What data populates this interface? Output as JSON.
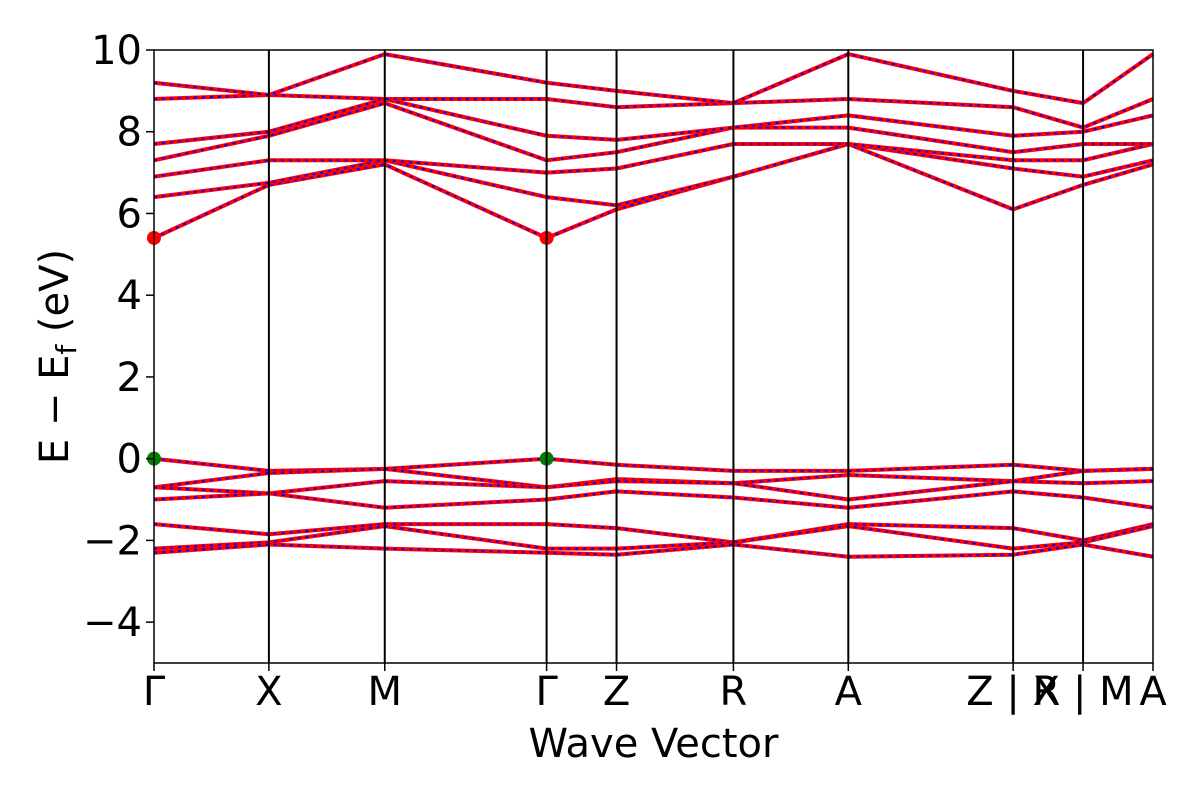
{
  "chart_data": {
    "type": "line",
    "title": "",
    "xlabel": "Wave Vector",
    "ylabel": "E − E",
    "ylabel_sub": "f",
    "ylabel_unit": "(eV)",
    "ylim": [
      -5,
      10
    ],
    "yticks": [
      -4,
      -2,
      0,
      2,
      4,
      6,
      8,
      10
    ],
    "ytick_labels": [
      "−4",
      "−2",
      "0",
      "2",
      "4",
      "6",
      "8",
      "10"
    ],
    "kpath_positions": [
      0,
      0.115,
      0.231,
      0.393,
      0.463,
      0.58,
      0.695,
      0.86,
      0.93,
      1.0
    ],
    "kpath_labels": [
      "Γ",
      "X",
      "M",
      "Γ",
      "Z",
      "R",
      "A",
      "Z | X",
      "R | M",
      "A"
    ],
    "grid": false,
    "legend": "none",
    "colors": {
      "band_primary": "#ff0000",
      "band_secondary": "#0000ff",
      "vbm_marker": "#008000",
      "cbm_marker": "#ff0000",
      "vline": "#000000"
    },
    "band_gap_points": {
      "vbm": [
        {
          "k": 0,
          "E": 0.0
        },
        {
          "k": 0.393,
          "E": 0.0
        }
      ],
      "cbm": [
        {
          "k": 0,
          "E": 5.4
        },
        {
          "k": 0.393,
          "E": 5.4
        }
      ]
    },
    "series": [
      {
        "k": [
          0,
          0.115,
          0.231,
          0.393,
          0.463,
          0.58,
          0.695,
          0.86,
          0.93,
          1.0
        ],
        "E": [
          5.4,
          6.7,
          7.2,
          5.4,
          6.1,
          6.9,
          7.7,
          6.1,
          6.7,
          7.2
        ]
      },
      {
        "k": [
          0,
          0.115,
          0.231,
          0.393,
          0.463,
          0.58,
          0.695,
          0.86,
          0.93,
          1.0
        ],
        "E": [
          6.4,
          6.75,
          7.3,
          6.4,
          6.2,
          6.9,
          7.7,
          7.1,
          6.9,
          7.3
        ]
      },
      {
        "k": [
          0,
          0.115,
          0.231,
          0.393,
          0.463,
          0.58,
          0.695,
          0.86,
          0.93,
          1.0
        ],
        "E": [
          6.9,
          7.3,
          7.3,
          7.0,
          7.1,
          7.7,
          7.7,
          7.3,
          7.3,
          7.7
        ]
      },
      {
        "k": [
          0,
          0.115,
          0.231,
          0.393,
          0.463,
          0.58,
          0.695,
          0.86,
          0.93,
          1.0
        ],
        "E": [
          7.3,
          7.9,
          8.7,
          7.3,
          7.5,
          8.1,
          8.1,
          7.5,
          7.7,
          7.7
        ]
      },
      {
        "k": [
          0,
          0.115,
          0.231,
          0.393,
          0.463,
          0.58,
          0.695,
          0.86,
          0.93,
          1.0
        ],
        "E": [
          7.7,
          8.0,
          8.8,
          7.9,
          7.8,
          8.1,
          8.4,
          7.9,
          8.0,
          8.4
        ]
      },
      {
        "k": [
          0,
          0.115,
          0.231,
          0.393,
          0.463,
          0.58,
          0.695,
          0.86,
          0.93,
          1.0
        ],
        "E": [
          8.8,
          8.9,
          8.8,
          8.8,
          8.6,
          8.7,
          8.8,
          8.6,
          8.1,
          8.8
        ]
      },
      {
        "k": [
          0,
          0.115,
          0.231,
          0.393,
          0.463,
          0.58,
          0.695,
          0.86,
          0.93,
          1.0
        ],
        "E": [
          9.2,
          8.9,
          9.9,
          9.2,
          9.0,
          8.7,
          9.9,
          9.0,
          8.7,
          9.9
        ]
      },
      {
        "k": [
          0,
          0.115,
          0.231,
          0.393,
          0.463,
          0.58,
          0.695,
          0.86,
          0.93,
          1.0
        ],
        "E": [
          0.0,
          -0.3,
          -0.25,
          0.0,
          -0.15,
          -0.3,
          -0.3,
          -0.15,
          -0.3,
          -0.25
        ]
      },
      {
        "k": [
          0,
          0.115,
          0.231,
          0.393,
          0.463,
          0.58,
          0.695,
          0.86,
          0.93,
          1.0
        ],
        "E": [
          -0.7,
          -0.35,
          -0.25,
          -0.7,
          -0.5,
          -0.6,
          -0.4,
          -0.55,
          -0.3,
          -0.25
        ]
      },
      {
        "k": [
          0,
          0.115,
          0.231,
          0.393,
          0.463,
          0.58,
          0.695,
          0.86,
          0.93,
          1.0
        ],
        "E": [
          -0.7,
          -0.85,
          -0.55,
          -0.7,
          -0.55,
          -0.6,
          -1.0,
          -0.55,
          -0.6,
          -0.55
        ]
      },
      {
        "k": [
          0,
          0.115,
          0.231,
          0.393,
          0.463,
          0.58,
          0.695,
          0.86,
          0.93,
          1.0
        ],
        "E": [
          -1.0,
          -0.85,
          -1.2,
          -1.0,
          -0.8,
          -0.95,
          -1.2,
          -0.8,
          -0.95,
          -1.2
        ]
      },
      {
        "k": [
          0,
          0.115,
          0.231,
          0.393,
          0.463,
          0.58,
          0.695,
          0.86,
          0.93,
          1.0
        ],
        "E": [
          -1.6,
          -1.85,
          -1.6,
          -1.6,
          -1.7,
          -2.05,
          -1.6,
          -1.7,
          -2.0,
          -1.6
        ]
      },
      {
        "k": [
          0,
          0.115,
          0.231,
          0.393,
          0.463,
          0.58,
          0.695,
          0.86,
          0.93,
          1.0
        ],
        "E": [
          -2.2,
          -2.05,
          -1.65,
          -2.2,
          -2.2,
          -2.05,
          -1.65,
          -2.2,
          -2.05,
          -1.65
        ]
      },
      {
        "k": [
          0,
          0.115,
          0.231,
          0.393,
          0.463,
          0.58,
          0.695,
          0.86,
          0.93,
          1.0
        ],
        "E": [
          -2.3,
          -2.1,
          -2.2,
          -2.3,
          -2.35,
          -2.1,
          -2.4,
          -2.35,
          -2.1,
          -2.4
        ]
      }
    ]
  }
}
